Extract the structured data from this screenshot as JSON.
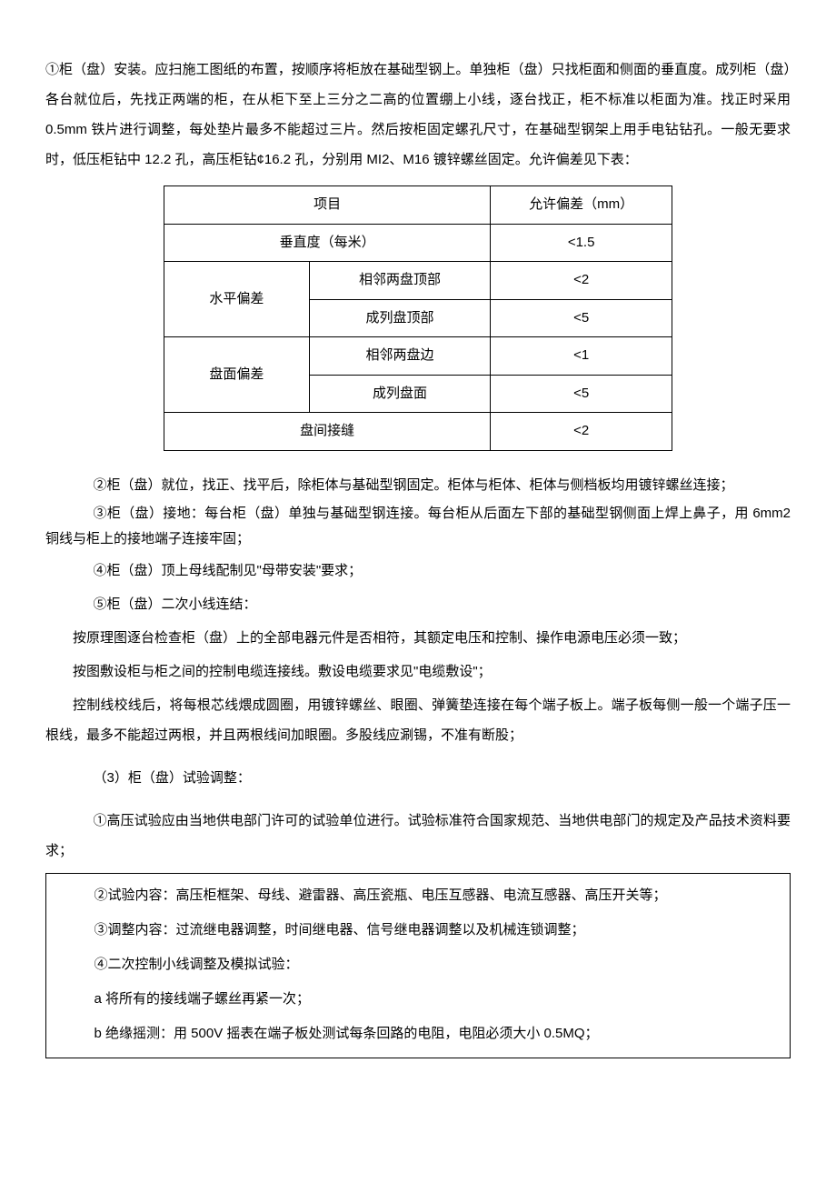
{
  "p1": "①柜（盘）安装。应扫施工图纸的布置，按顺序将柜放在基础型钢上。单独柜（盘）只找柜面和侧面的垂直度。成列柜（盘）各台就位后，先找正两端的柜，在从柜下至上三分之二高的位置绷上小线，逐台找正，柜不标准以柜面为准。找正时采用 0.5mm 铁片进行调整，每处垫片最多不能超过三片。然后按柜固定螺孔尺寸，在基础型钢架上用手电钻钻孔。一般无要求时，低压柜钻中 12.2 孔，高压柜钻¢16.2 孔，分别用 MI2、M16 镀锌螺丝固定。允许偏差见下表：",
  "table": {
    "header": {
      "c1": "项目",
      "c2": "允许偏差（mm）"
    },
    "r1": {
      "c1": "垂直度（每米）",
      "c2": "<1.5"
    },
    "r2": {
      "label": "水平偏差",
      "a": "相邻两盘顶部",
      "av": "<2",
      "b": "成列盘顶部",
      "bv": "<5"
    },
    "r3": {
      "label": "盘面偏差",
      "a": "相邻两盘边",
      "av": "<1",
      "b": "成列盘面",
      "bv": "<5"
    },
    "r4": {
      "c1": "盘间接缝",
      "c2": "<2"
    }
  },
  "p2": "②柜（盘）就位，找正、找平后，除柜体与基础型钢固定。柜体与柜体、柜体与侧档板均用镀锌螺丝连接；",
  "p3": "③柜（盘）接地：每台柜（盘）单独与基础型钢连接。每台柜从后面左下部的基础型钢侧面上焊上鼻子，用 6mm2 铜线与柜上的接地端子连接牢固；",
  "p4": "④柜（盘）顶上母线配制见\"母带安装\"要求；",
  "p5": "⑤柜（盘）二次小线连结：",
  "p6": "按原理图逐台检查柜（盘）上的全部电器元件是否相符，其额定电压和控制、操作电源电压必须一致；",
  "p7": "按图敷设柜与柜之间的控制电缆连接线。敷设电缆要求见\"电缆敷设\"；",
  "p8": "控制线校线后，将每根芯线煨成圆圈，用镀锌螺丝、眼圈、弹簧垫连接在每个端子板上。端子板每侧一般一个端子压一根线，最多不能超过两根，并且两根线间加眼圈。多股线应涮锡，不准有断股；",
  "p9": "（3）柜（盘）试验调整：",
  "p10": "①高压试验应由当地供电部门许可的试验单位进行。试验标准符合国家规范、当地供电部门的规定及产品技术资料要求；",
  "p11": "②试验内容：高压柜框架、母线、避雷器、高压瓷瓶、电压互感器、电流互感器、高压开关等；",
  "p12": "③调整内容：过流继电器调整，时间继电器、信号继电器调整以及机械连锁调整；",
  "p13": "④二次控制小线调整及模拟试验：",
  "p14": "a 将所有的接线端子螺丝再紧一次；",
  "p15": "b 绝缘摇测：用 500V 摇表在端子板处测试每条回路的电阻，电阻必须大小 0.5MQ；"
}
